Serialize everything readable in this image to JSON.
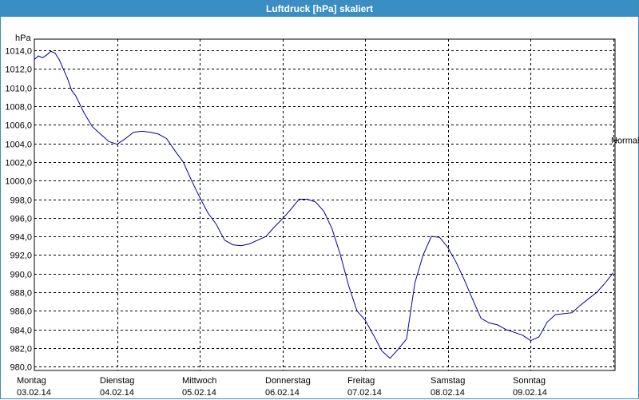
{
  "window": {
    "title": "Luftdruck [hPa] skaliert"
  },
  "chart_data": {
    "type": "line",
    "title": "Luftdruck [hPa] skaliert",
    "ylabel": "hPa",
    "ylim": [
      979.6,
      1015.2
    ],
    "x_range": [
      0,
      7.02
    ],
    "yticks": [
      "1014,0",
      "1012,0",
      "1010,0",
      "1008,0",
      "1006,0",
      "1004,0",
      "1002,0",
      "1000,0",
      "998,0",
      "996,0",
      "994,0",
      "992,0",
      "990,0",
      "988,0",
      "986,0",
      "984,0",
      "982,0",
      "980,0"
    ],
    "ytick_values": [
      1014,
      1012,
      1010,
      1008,
      1006,
      1004,
      1002,
      1000,
      998,
      996,
      994,
      992,
      990,
      988,
      986,
      984,
      982,
      980
    ],
    "x_categories": [
      {
        "day": "Montag",
        "date": "03.02.14"
      },
      {
        "day": "Dienstag",
        "date": "04.02.14"
      },
      {
        "day": "Mittwoch",
        "date": "05.02.14"
      },
      {
        "day": "Donnerstag",
        "date": "06.02.14"
      },
      {
        "day": "Freitag",
        "date": "07.02.14"
      },
      {
        "day": "Samstag",
        "date": "08.02.14"
      },
      {
        "day": "Sonntag",
        "date": "09.02.14"
      }
    ],
    "reference_line": {
      "label": "Normal",
      "value": 1004.4
    },
    "grid": true,
    "line_color": "#0000a0",
    "series": [
      {
        "x": [
          0,
          0.05,
          0.1,
          0.15,
          0.2,
          0.25,
          0.3,
          0.35,
          0.4,
          0.45,
          0.5,
          0.55,
          0.6,
          0.7,
          0.8,
          0.9,
          1.0,
          1.1,
          1.2,
          1.3,
          1.4,
          1.5,
          1.6,
          1.7,
          1.8,
          1.9,
          2.0,
          2.1,
          2.2,
          2.3,
          2.4,
          2.5,
          2.6,
          2.7,
          2.8,
          2.9,
          3.0,
          3.1,
          3.2,
          3.3,
          3.4,
          3.5,
          3.6,
          3.7,
          3.8,
          3.9,
          4.0,
          4.1,
          4.2,
          4.3,
          4.4,
          4.5,
          4.6,
          4.7,
          4.8,
          4.9,
          5.0,
          5.1,
          5.2,
          5.3,
          5.4,
          5.5,
          5.6,
          5.7,
          5.8,
          5.9,
          6.0,
          6.1,
          6.2,
          6.3,
          6.4,
          6.5,
          6.6,
          6.7,
          6.8,
          6.9,
          7.0
        ],
        "y": [
          1013.0,
          1013.4,
          1013.2,
          1013.5,
          1013.9,
          1013.7,
          1013.0,
          1012.0,
          1011.0,
          1009.7,
          1009.1,
          1008.2,
          1007.3,
          1005.8,
          1005.0,
          1004.2,
          1003.9,
          1004.5,
          1005.2,
          1005.3,
          1005.2,
          1005.0,
          1004.5,
          1003.2,
          1002.0,
          1000.0,
          998.2,
          996.5,
          995.3,
          993.6,
          993.1,
          993.0,
          993.2,
          993.6,
          994.0,
          995.0,
          995.9,
          996.9,
          998.0,
          998.0,
          997.7,
          996.7,
          994.8,
          992.0,
          988.7,
          986.0,
          985.0,
          983.4,
          981.7,
          980.9,
          981.9,
          983.0,
          989.0,
          992.0,
          994.0,
          993.9,
          992.8,
          991.2,
          989.3,
          987.2,
          985.2,
          984.7,
          984.5,
          984.0,
          983.7,
          983.4,
          982.8,
          983.2,
          984.8,
          985.6,
          985.7,
          985.8,
          986.6,
          987.3,
          988.0,
          989.0,
          990.1
        ]
      }
    ]
  }
}
